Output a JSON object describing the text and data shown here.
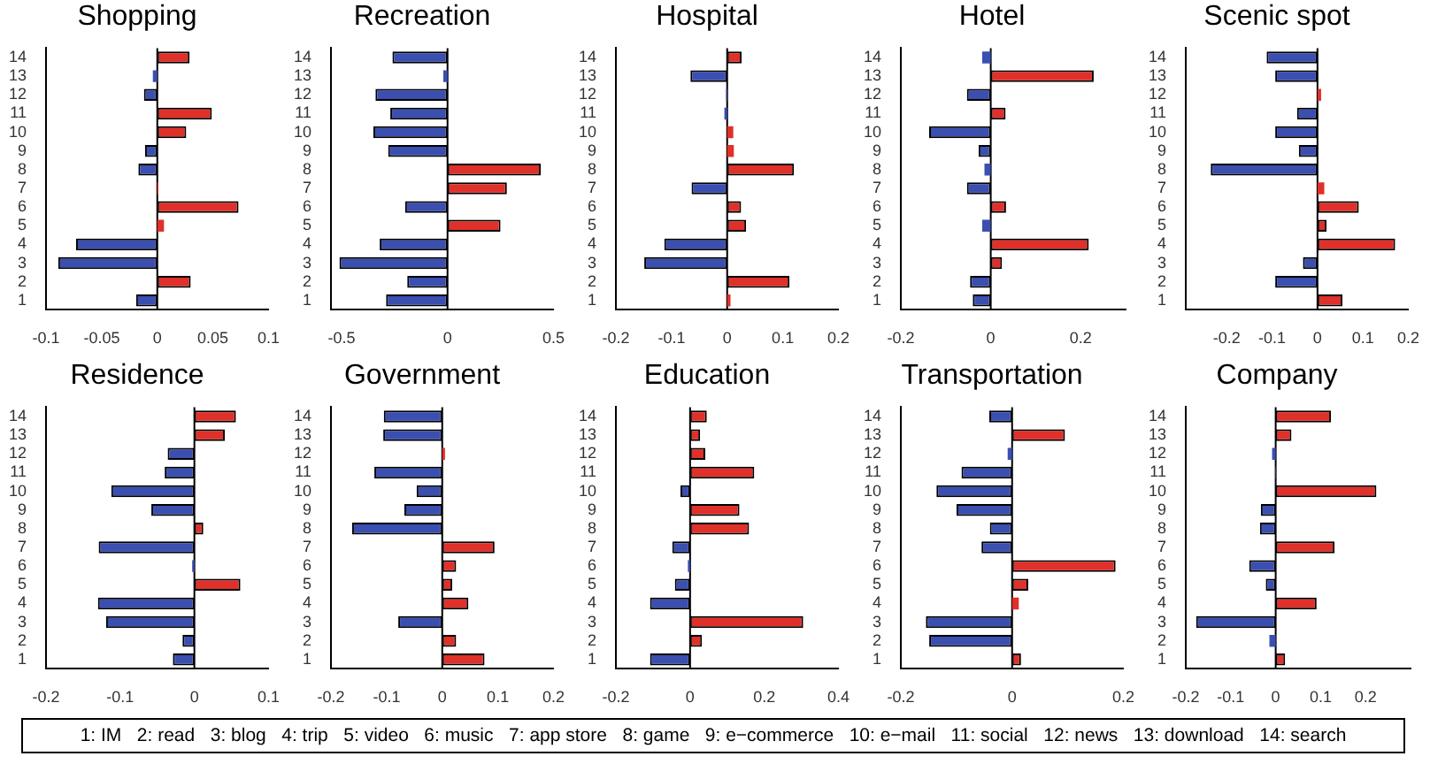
{
  "chart_data": [
    {
      "type": "bar",
      "title": "Shopping",
      "orientation": "horizontal",
      "grid": false,
      "ref_lines": [
        {
          "axis": "x",
          "value": 0,
          "color": "#000000"
        }
      ],
      "categories": [
        "14",
        "13",
        "12",
        "11",
        "10",
        "9",
        "8",
        "7",
        "6",
        "5",
        "4",
        "3",
        "2",
        "1"
      ],
      "xlim": [
        -0.1,
        0.1
      ],
      "xticks": [
        -0.1,
        -0.05,
        0,
        0.05,
        0.1
      ],
      "values": [
        0.029,
        -0.004,
        -0.012,
        0.049,
        0.026,
        -0.011,
        -0.017,
        0.001,
        0.073,
        0.006,
        -0.073,
        -0.089,
        0.03,
        -0.019
      ],
      "colors": [
        "#e0302a",
        "#3a4fb0",
        "#3a4fb0",
        "#e0302a",
        "#e0302a",
        "#3a4fb0",
        "#3a4fb0",
        "#e0302a",
        "#e0302a",
        "#e0302a",
        "#3a4fb0",
        "#3a4fb0",
        "#e0302a",
        "#3a4fb0"
      ]
    },
    {
      "type": "bar",
      "title": "Recreation",
      "orientation": "horizontal",
      "grid": false,
      "ref_lines": [
        {
          "axis": "x",
          "value": 0,
          "color": "#000000"
        }
      ],
      "categories": [
        "14",
        "13",
        "12",
        "11",
        "10",
        "9",
        "8",
        "7",
        "6",
        "5",
        "4",
        "3",
        "2",
        "1"
      ],
      "xlim": [
        -0.55,
        0.5
      ],
      "xticks": [
        -0.5,
        0,
        0.5
      ],
      "values": [
        -0.26,
        -0.02,
        -0.34,
        -0.27,
        -0.35,
        -0.28,
        0.44,
        0.28,
        -0.2,
        0.25,
        -0.32,
        -0.51,
        -0.19,
        -0.29
      ],
      "colors": [
        "#3a4fb0",
        "#3a4fb0",
        "#3a4fb0",
        "#3a4fb0",
        "#3a4fb0",
        "#3a4fb0",
        "#e0302a",
        "#e0302a",
        "#3a4fb0",
        "#e0302a",
        "#3a4fb0",
        "#3a4fb0",
        "#3a4fb0",
        "#3a4fb0"
      ]
    },
    {
      "type": "bar",
      "title": "Hospital",
      "orientation": "horizontal",
      "grid": false,
      "ref_lines": [
        {
          "axis": "x",
          "value": 0,
          "color": "#000000"
        }
      ],
      "categories": [
        "14",
        "13",
        "12",
        "11",
        "10",
        "9",
        "8",
        "7",
        "6",
        "5",
        "4",
        "3",
        "2",
        "1"
      ],
      "xlim": [
        -0.2,
        0.2
      ],
      "xticks": [
        -0.2,
        -0.1,
        0,
        0.1,
        0.2
      ],
      "values": [
        0.026,
        -0.066,
        -0.002,
        -0.005,
        0.011,
        0.012,
        0.12,
        -0.064,
        0.025,
        0.034,
        -0.113,
        -0.149,
        0.112,
        0.006
      ],
      "colors": [
        "#e0302a",
        "#3a4fb0",
        "#3a4fb0",
        "#3a4fb0",
        "#e0302a",
        "#e0302a",
        "#e0302a",
        "#3a4fb0",
        "#e0302a",
        "#e0302a",
        "#3a4fb0",
        "#3a4fb0",
        "#e0302a",
        "#e0302a"
      ]
    },
    {
      "type": "bar",
      "title": "Hotel",
      "orientation": "horizontal",
      "grid": false,
      "ref_lines": [
        {
          "axis": "x",
          "value": 0,
          "color": "#000000"
        }
      ],
      "categories": [
        "14",
        "13",
        "12",
        "11",
        "10",
        "9",
        "8",
        "7",
        "6",
        "5",
        "4",
        "3",
        "2",
        "1"
      ],
      "xlim": [
        -0.2,
        0.3
      ],
      "xticks": [
        -0.2,
        0,
        0.2
      ],
      "values": [
        -0.019,
        0.229,
        -0.053,
        0.033,
        -0.137,
        -0.027,
        -0.014,
        -0.053,
        0.034,
        -0.019,
        0.218,
        0.025,
        -0.046,
        -0.04
      ],
      "colors": [
        "#3a4fb0",
        "#e0302a",
        "#3a4fb0",
        "#e0302a",
        "#3a4fb0",
        "#3a4fb0",
        "#3a4fb0",
        "#3a4fb0",
        "#e0302a",
        "#3a4fb0",
        "#e0302a",
        "#e0302a",
        "#3a4fb0",
        "#3a4fb0"
      ]
    },
    {
      "type": "bar",
      "title": "Scenic spot",
      "orientation": "horizontal",
      "grid": false,
      "ref_lines": [
        {
          "axis": "x",
          "value": 0,
          "color": "#000000"
        }
      ],
      "categories": [
        "14",
        "13",
        "12",
        "11",
        "10",
        "9",
        "8",
        "7",
        "6",
        "5",
        "4",
        "3",
        "2",
        "1"
      ],
      "xlim": [
        -0.29,
        0.2
      ],
      "xticks": [
        -0.2,
        -0.1,
        0,
        0.1,
        0.2
      ],
      "values": [
        -0.112,
        -0.093,
        0.008,
        -0.045,
        -0.093,
        -0.041,
        -0.235,
        0.015,
        0.091,
        0.02,
        0.171,
        -0.032,
        -0.093,
        0.055
      ],
      "colors": [
        "#3a4fb0",
        "#3a4fb0",
        "#e0302a",
        "#3a4fb0",
        "#3a4fb0",
        "#3a4fb0",
        "#3a4fb0",
        "#e0302a",
        "#e0302a",
        "#e0302a",
        "#e0302a",
        "#3a4fb0",
        "#3a4fb0",
        "#e0302a"
      ]
    },
    {
      "type": "bar",
      "title": "Residence",
      "orientation": "horizontal",
      "grid": false,
      "ref_lines": [
        {
          "axis": "x",
          "value": 0,
          "color": "#000000"
        }
      ],
      "categories": [
        "14",
        "13",
        "12",
        "11",
        "10",
        "9",
        "8",
        "7",
        "6",
        "5",
        "4",
        "3",
        "2",
        "1"
      ],
      "xlim": [
        -0.2,
        0.1
      ],
      "xticks": [
        -0.2,
        -0.1,
        0,
        0.1
      ],
      "values": [
        0.056,
        0.041,
        -0.036,
        -0.04,
        -0.112,
        -0.058,
        0.012,
        -0.129,
        -0.003,
        0.062,
        -0.13,
        -0.119,
        -0.016,
        -0.029
      ],
      "colors": [
        "#e0302a",
        "#e0302a",
        "#3a4fb0",
        "#3a4fb0",
        "#3a4fb0",
        "#3a4fb0",
        "#e0302a",
        "#3a4fb0",
        "#3a4fb0",
        "#e0302a",
        "#3a4fb0",
        "#3a4fb0",
        "#3a4fb0",
        "#3a4fb0"
      ]
    },
    {
      "type": "bar",
      "title": "Government",
      "orientation": "horizontal",
      "grid": false,
      "ref_lines": [
        {
          "axis": "x",
          "value": 0,
          "color": "#000000"
        }
      ],
      "categories": [
        "14",
        "13",
        "12",
        "11",
        "10",
        "9",
        "8",
        "7",
        "6",
        "5",
        "4",
        "3",
        "2",
        "1"
      ],
      "xlim": [
        -0.2,
        0.2
      ],
      "xticks": [
        -0.2,
        -0.1,
        0,
        0.1,
        0.2
      ],
      "values": [
        -0.105,
        -0.106,
        0.005,
        -0.122,
        -0.046,
        -0.068,
        -0.162,
        0.094,
        0.025,
        0.018,
        0.047,
        -0.079,
        0.025,
        0.076
      ],
      "colors": [
        "#3a4fb0",
        "#3a4fb0",
        "#e0302a",
        "#3a4fb0",
        "#3a4fb0",
        "#3a4fb0",
        "#3a4fb0",
        "#e0302a",
        "#e0302a",
        "#e0302a",
        "#e0302a",
        "#3a4fb0",
        "#e0302a",
        "#e0302a"
      ]
    },
    {
      "type": "bar",
      "title": "Education",
      "orientation": "horizontal",
      "grid": false,
      "ref_lines": [
        {
          "axis": "x",
          "value": 0,
          "color": "#000000"
        }
      ],
      "categories": [
        "14",
        "13",
        "12",
        "11",
        "10",
        "9",
        "8",
        "7",
        "6",
        "5",
        "4",
        "3",
        "2",
        "1"
      ],
      "xlim": [
        -0.2,
        0.4
      ],
      "xticks": [
        -0.2,
        0,
        0.2,
        0.4
      ],
      "values": [
        0.045,
        0.027,
        0.041,
        0.173,
        -0.026,
        0.133,
        0.159,
        -0.048,
        -0.006,
        -0.041,
        -0.108,
        0.305,
        0.032,
        -0.108
      ],
      "colors": [
        "#e0302a",
        "#e0302a",
        "#e0302a",
        "#e0302a",
        "#3a4fb0",
        "#e0302a",
        "#e0302a",
        "#3a4fb0",
        "#3a4fb0",
        "#3a4fb0",
        "#3a4fb0",
        "#e0302a",
        "#e0302a",
        "#3a4fb0"
      ]
    },
    {
      "type": "bar",
      "title": "Transportation",
      "orientation": "horizontal",
      "grid": false,
      "ref_lines": [
        {
          "axis": "x",
          "value": 0,
          "color": "#000000"
        }
      ],
      "categories": [
        "14",
        "13",
        "12",
        "11",
        "10",
        "9",
        "8",
        "7",
        "6",
        "5",
        "4",
        "3",
        "2",
        "1"
      ],
      "xlim": [
        -0.2,
        0.2
      ],
      "xticks": [
        -0.2,
        0,
        0.2
      ],
      "values": [
        -0.041,
        0.095,
        -0.008,
        -0.091,
        -0.136,
        -0.1,
        -0.04,
        -0.055,
        0.186,
        0.029,
        0.012,
        -0.155,
        -0.149,
        0.016
      ],
      "colors": [
        "#3a4fb0",
        "#e0302a",
        "#3a4fb0",
        "#3a4fb0",
        "#3a4fb0",
        "#3a4fb0",
        "#3a4fb0",
        "#3a4fb0",
        "#e0302a",
        "#e0302a",
        "#e0302a",
        "#3a4fb0",
        "#3a4fb0",
        "#e0302a"
      ]
    },
    {
      "type": "bar",
      "title": "Company",
      "orientation": "horizontal",
      "grid": false,
      "ref_lines": [
        {
          "axis": "x",
          "value": 0,
          "color": "#000000"
        }
      ],
      "categories": [
        "14",
        "13",
        "12",
        "11",
        "10",
        "9",
        "8",
        "7",
        "6",
        "5",
        "4",
        "3",
        "2",
        "1"
      ],
      "xlim": [
        -0.2,
        0.3
      ],
      "xticks": [
        -0.2,
        -0.1,
        0,
        0.1,
        0.2
      ],
      "values": [
        0.123,
        0.035,
        -0.008,
        -0.001,
        0.224,
        -0.033,
        -0.035,
        0.131,
        -0.059,
        -0.022,
        0.091,
        -0.177,
        -0.014,
        0.021
      ],
      "colors": [
        "#e0302a",
        "#e0302a",
        "#3a4fb0",
        "#3a4fb0",
        "#e0302a",
        "#3a4fb0",
        "#3a4fb0",
        "#e0302a",
        "#3a4fb0",
        "#3a4fb0",
        "#e0302a",
        "#3a4fb0",
        "#3a4fb0",
        "#e0302a"
      ]
    },
    {
      "type": "other",
      "annotations": [
        "1: IM   2: read   3: blog   4: trip   5: video   6: music   7: app store   8: game   9: e−commerce   10: e−mail   11: social   12: news   13: download   14: search"
      ]
    }
  ]
}
